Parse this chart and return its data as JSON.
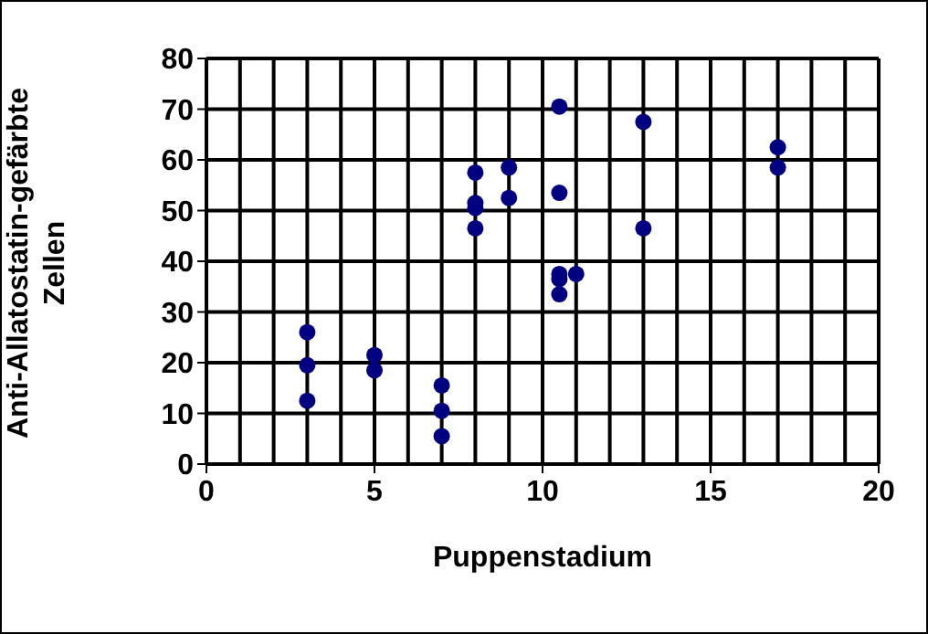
{
  "chart_data": {
    "type": "scatter",
    "xlabel": "Puppenstadium",
    "ylabel": "Anti-Allatostatin-gefärbte Zellen",
    "color": "#000080",
    "marker": "circle",
    "grid": true,
    "legend": false,
    "x": [
      3,
      3,
      3,
      5,
      5,
      7,
      7,
      7,
      8,
      8,
      8,
      8,
      9,
      9,
      10.5,
      10.5,
      10.5,
      10.5,
      10.5,
      11,
      13,
      13,
      17,
      17
    ],
    "values": [
      26,
      19.5,
      12.5,
      21.5,
      18.5,
      15.5,
      10.5,
      5.5,
      57.5,
      51.5,
      50.5,
      46.5,
      58.5,
      52.5,
      70.5,
      53.5,
      37.5,
      36.5,
      33.5,
      37.5,
      67.5,
      46.5,
      62.5,
      58.5
    ],
    "xlim": [
      0,
      20
    ],
    "xticks": [
      0,
      {
        "value": 1,
        "label": null
      },
      {
        "value": 2,
        "label": null
      },
      {
        "value": 3,
        "label": null
      },
      {
        "value": 4,
        "label": null
      },
      5,
      {
        "value": 6,
        "label": null
      },
      {
        "value": 7,
        "label": null
      },
      {
        "value": 8,
        "label": null
      },
      {
        "value": 9,
        "label": null
      },
      10,
      {
        "value": 11,
        "label": null
      },
      {
        "value": 12,
        "label": null
      },
      {
        "value": 13,
        "label": null
      },
      {
        "value": 14,
        "label": null
      },
      15,
      {
        "value": 16,
        "label": null
      },
      {
        "value": 17,
        "label": null
      },
      {
        "value": 18,
        "label": null
      },
      {
        "value": 19,
        "label": null
      },
      20
    ],
    "ylim": [
      0,
      80
    ],
    "yticks": [
      0,
      10,
      20,
      30,
      40,
      50,
      60,
      70,
      80
    ]
  }
}
